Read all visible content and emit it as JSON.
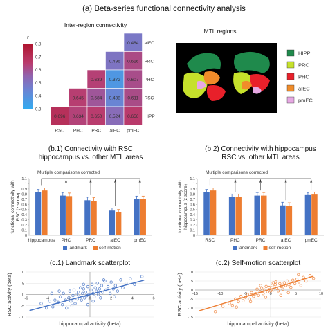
{
  "figure": {
    "title": "(a) Beta-series functional connectivity analysis"
  },
  "colors": {
    "landmark": "#4472c4",
    "self_motion": "#ed7d31",
    "significance": "#e8202a",
    "bracket": "#555555"
  },
  "chart_data": [
    {
      "type": "heatmap",
      "title": "Inter-region connectivity",
      "colorbar": {
        "label": "r",
        "min": 0.3,
        "max": 0.8,
        "ticks": [
          "0.8",
          "0.7",
          "0.6",
          "0.5",
          "0.4",
          "0.3"
        ]
      },
      "rows": [
        "aIEC",
        "PRC",
        "PHC",
        "RSC",
        "HIPP"
      ],
      "columns": [
        "RSC",
        "PHC",
        "PRC",
        "aIEC",
        "pmEC"
      ],
      "values": [
        [
          null,
          null,
          null,
          null,
          0.484
        ],
        [
          null,
          null,
          null,
          0.496,
          0.616
        ],
        [
          null,
          null,
          0.639,
          0.372,
          0.607
        ],
        [
          null,
          0.645,
          0.584,
          0.438,
          0.611
        ],
        [
          0.696,
          0.634,
          0.65,
          0.524,
          0.656
        ]
      ],
      "labels": [
        [
          null,
          null,
          null,
          null,
          "0.484"
        ],
        [
          null,
          null,
          null,
          "0.496",
          "0.616"
        ],
        [
          null,
          null,
          "0.639",
          "0.372",
          "0.607"
        ],
        [
          null,
          "0.645",
          "0.584",
          "0.438",
          "0.611"
        ],
        [
          "0.696",
          "0.634",
          "0.650",
          "0.524",
          "0.656"
        ]
      ]
    },
    {
      "type": "diagram",
      "title": "MTL regions",
      "legend": [
        {
          "name": "HIPP",
          "color": "#1f8a4c"
        },
        {
          "name": "PRC",
          "color": "#c6e12b"
        },
        {
          "name": "PHC",
          "color": "#e8202a"
        },
        {
          "name": "aIEC",
          "color": "#f08c2a"
        },
        {
          "name": "pmEC",
          "color": "#e7a8e3"
        }
      ]
    },
    {
      "type": "bar",
      "title": "(b.1) Connectivity with RSC",
      "subtitle": "hippocampus vs. other MTL areas",
      "ylabel": "functional connectivity with",
      "ylabel2": "RSC (z score)",
      "note": "Multiple comparisons corrected",
      "categories": [
        "hippocampus",
        "PHC",
        "PRC",
        "aIEC",
        "pmEC"
      ],
      "ylim": [
        0,
        1.1
      ],
      "yticks": [
        "0",
        "0.1",
        "0.2",
        "0.3",
        "0.4",
        "0.5",
        "0.6",
        "0.7",
        "0.8",
        "0.9",
        "1",
        "1.1"
      ],
      "series": [
        {
          "name": "landmark",
          "values": [
            0.84,
            0.77,
            0.68,
            0.48,
            0.71
          ],
          "errors": [
            0.05,
            0.06,
            0.06,
            0.05,
            0.05
          ]
        },
        {
          "name": "self-motion",
          "values": [
            0.87,
            0.76,
            0.67,
            0.45,
            0.71
          ],
          "errors": [
            0.05,
            0.06,
            0.06,
            0.05,
            0.05
          ]
        }
      ],
      "significance": [
        "",
        "*",
        "*",
        "*",
        "*"
      ]
    },
    {
      "type": "bar",
      "title": "(b.2) Connectivity with hippocampus",
      "subtitle": "RSC vs. other MTL areas",
      "ylabel": "functional connectivity with",
      "ylabel2": "hippocampus (z score)",
      "note": "Multiple comparisons corrected",
      "categories": [
        "RSC",
        "PHC",
        "PRC",
        "aIEC",
        "pmEC"
      ],
      "ylim": [
        0,
        1.1
      ],
      "yticks": [
        "0",
        "0.1",
        "0.2",
        "0.3",
        "0.4",
        "0.5",
        "0.6",
        "0.7",
        "0.8",
        "0.9",
        "1",
        "1.1"
      ],
      "series": [
        {
          "name": "landmark",
          "values": [
            0.84,
            0.74,
            0.77,
            0.58,
            0.78
          ],
          "errors": [
            0.05,
            0.06,
            0.06,
            0.06,
            0.05
          ]
        },
        {
          "name": "self-motion",
          "values": [
            0.87,
            0.74,
            0.77,
            0.57,
            0.79
          ],
          "errors": [
            0.05,
            0.06,
            0.06,
            0.06,
            0.05
          ]
        }
      ],
      "significance": [
        "",
        "*",
        "*",
        "*",
        "*"
      ]
    },
    {
      "type": "scatter",
      "title": "(c.1) Landmark scatterplot",
      "xlabel": "hippocampal activity (beta)",
      "ylabel": "RSC activity (beta)",
      "xlim": [
        -6,
        6
      ],
      "ylim": [
        -10,
        10
      ],
      "xticks": [
        "-6",
        "-4",
        "-2",
        "0",
        "2",
        "4",
        "6"
      ],
      "yticks": [
        "-10",
        "-5",
        "0",
        "5",
        "10"
      ],
      "fit": {
        "slope": 1.25,
        "intercept": 0
      },
      "color": "#4472c4",
      "x": [
        -4.6,
        -4.1,
        -3.8,
        -3.5,
        -3.3,
        -3.0,
        -2.8,
        -2.6,
        -2.5,
        -2.3,
        -2.2,
        -2.0,
        -1.9,
        -1.8,
        -1.6,
        -1.5,
        -1.4,
        -1.3,
        -1.2,
        -1.1,
        -1.0,
        -0.9,
        -0.8,
        -0.7,
        -0.6,
        -0.5,
        -0.4,
        -0.3,
        -0.2,
        -0.1,
        0.0,
        0.1,
        0.2,
        0.3,
        0.4,
        0.5,
        0.6,
        0.7,
        0.8,
        0.9,
        1.0,
        1.1,
        1.2,
        1.4,
        1.5,
        1.7,
        1.9,
        2.0,
        2.2,
        2.4,
        2.6,
        2.9,
        3.1,
        3.4,
        3.8,
        4.2,
        4.9,
        -2.9,
        -1.7,
        -0.6,
        0.3,
        1.3,
        2.3,
        -3.6,
        -0.2
      ],
      "y": [
        -4.0,
        -6.0,
        -3.0,
        -5.5,
        -2.5,
        -3.5,
        -1.0,
        -4.5,
        0.5,
        -2.5,
        -6.0,
        -1.5,
        1.5,
        -3.0,
        -0.5,
        2.0,
        -4.0,
        0.0,
        -2.0,
        1.0,
        -1.0,
        3.0,
        -2.5,
        0.5,
        2.5,
        -1.5,
        1.0,
        -0.5,
        3.5,
        0.0,
        -2.0,
        2.0,
        4.5,
        0.5,
        -1.0,
        3.0,
        1.5,
        5.0,
        0.0,
        2.5,
        -1.5,
        4.0,
        1.0,
        6.0,
        2.0,
        3.5,
        0.5,
        5.5,
        2.5,
        4.0,
        1.5,
        6.5,
        3.0,
        5.0,
        7.0,
        4.5,
        8.0,
        1.5,
        -5.0,
        4.5,
        -3.0,
        6.5,
        -1.0,
        0.5,
        -4.5
      ]
    },
    {
      "type": "scatter",
      "title": "(c.2) Self-motion scatterplot",
      "xlabel": "hippocampal activity (beta)",
      "ylabel": "RSC activity (beta)",
      "xlim": [
        -15,
        10
      ],
      "ylim": [
        -15,
        10
      ],
      "xticks": [
        "-15",
        "-10",
        "-5",
        "0",
        "5",
        "10"
      ],
      "yticks": [
        "-15",
        "-10",
        "-5",
        "0",
        "5",
        "10"
      ],
      "fit": {
        "slope": 0.85,
        "intercept": 0.5
      },
      "color": "#ed7d31",
      "x": [
        -11.0,
        -9.5,
        -8.2,
        -7.6,
        -7.0,
        -6.4,
        -5.9,
        -5.5,
        -5.0,
        -4.6,
        -4.2,
        -3.8,
        -3.4,
        -3.0,
        -2.7,
        -2.4,
        -2.1,
        -1.8,
        -1.5,
        -1.2,
        -0.9,
        -0.6,
        -0.3,
        0.0,
        0.3,
        0.6,
        0.9,
        1.2,
        1.5,
        1.8,
        2.1,
        2.4,
        2.7,
        3.0,
        3.3,
        3.6,
        4.0,
        4.4,
        4.8,
        5.2,
        5.6,
        6.0,
        6.5,
        7.0,
        7.8,
        8.5,
        -6.8,
        -4.0,
        -1.0,
        1.0,
        3.5,
        5.5,
        -2.0,
        0.5,
        2.0
      ],
      "y": [
        -12.0,
        -9.0,
        -7.5,
        -8.5,
        -5.0,
        -6.5,
        -3.5,
        -6.0,
        -4.0,
        -2.5,
        -5.0,
        -1.5,
        -3.5,
        -2.0,
        0.5,
        -3.0,
        -1.0,
        1.0,
        -2.0,
        0.0,
        2.0,
        -1.0,
        1.5,
        -0.5,
        2.5,
        0.0,
        3.0,
        1.0,
        -0.5,
        3.5,
        2.0,
        0.5,
        4.0,
        2.5,
        5.0,
        3.0,
        1.5,
        5.5,
        3.5,
        6.0,
        4.5,
        2.5,
        7.0,
        5.0,
        8.0,
        6.5,
        -9.5,
        -6.5,
        -4.0,
        4.5,
        -1.5,
        8.5,
        2.5,
        4.0,
        -3.0
      ]
    }
  ]
}
